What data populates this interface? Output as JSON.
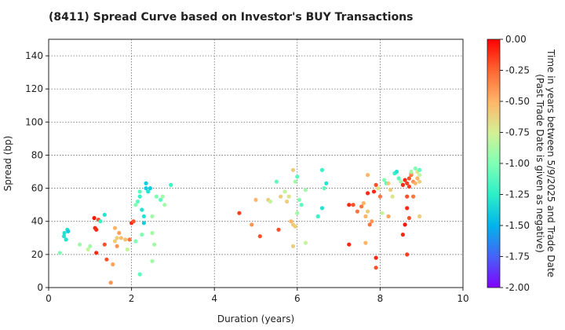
{
  "chart_data": {
    "type": "scatter",
    "title": "(8411)   Spread Curve based on Investor's BUY Transactions",
    "xlabel": "Duration (years)",
    "ylabel": "Spread (bp)",
    "xlim": [
      0,
      10
    ],
    "ylim": [
      0,
      150
    ],
    "xticks": [
      "0",
      "2",
      "4",
      "6",
      "8",
      "10"
    ],
    "yticks": [
      "0",
      "20",
      "40",
      "60",
      "80",
      "100",
      "120",
      "140"
    ],
    "grid": true,
    "colorbar": {
      "label_line1": "Time in years between 5/9/2025 and Trade Date",
      "label_line2": "(Past Trade Date is given as negative)",
      "range": [
        -2.0,
        0.0
      ],
      "ticks": [
        "0.00",
        "-0.25",
        "-0.50",
        "-0.75",
        "-1.00",
        "-1.25",
        "-1.50",
        "-1.75",
        "-2.00"
      ],
      "colormap": "rainbow"
    },
    "points": [
      [
        0.27,
        21,
        -1.0
      ],
      [
        0.37,
        31,
        -1.3
      ],
      [
        0.38,
        33,
        -1.3
      ],
      [
        0.42,
        29,
        -1.3
      ],
      [
        0.45,
        35,
        -1.3
      ],
      [
        0.47,
        34,
        -1.4
      ],
      [
        0.75,
        26,
        -0.9
      ],
      [
        0.95,
        23,
        -0.8
      ],
      [
        1.0,
        25,
        -0.9
      ],
      [
        1.1,
        42,
        -0.05
      ],
      [
        1.12,
        36,
        -0.1
      ],
      [
        1.15,
        35,
        -0.1
      ],
      [
        1.15,
        21,
        -0.1
      ],
      [
        1.2,
        41,
        -0.2
      ],
      [
        1.25,
        40,
        -1.2
      ],
      [
        1.35,
        44,
        -1.3
      ],
      [
        1.35,
        26,
        -0.2
      ],
      [
        1.4,
        17,
        -0.2
      ],
      [
        1.5,
        3,
        -0.4
      ],
      [
        1.55,
        14,
        -0.45
      ],
      [
        1.6,
        36,
        -0.5
      ],
      [
        1.65,
        30,
        -0.6
      ],
      [
        1.6,
        28,
        -0.6
      ],
      [
        1.7,
        33,
        -0.45
      ],
      [
        1.65,
        25,
        -0.4
      ],
      [
        1.75,
        30,
        -0.55
      ],
      [
        1.85,
        29,
        -0.55
      ],
      [
        1.9,
        23,
        -0.8
      ],
      [
        1.95,
        29,
        -0.3
      ],
      [
        2.0,
        39,
        -0.1
      ],
      [
        2.05,
        40,
        -0.2
      ],
      [
        2.1,
        50,
        -1.0
      ],
      [
        2.1,
        28,
        -1.0
      ],
      [
        2.15,
        52,
        -1.1
      ],
      [
        2.2,
        58,
        -1.1
      ],
      [
        2.2,
        55,
        -1.2
      ],
      [
        2.25,
        47,
        -1.3
      ],
      [
        2.3,
        39,
        -1.4
      ],
      [
        2.3,
        43,
        -1.3
      ],
      [
        2.35,
        63,
        -1.4
      ],
      [
        2.35,
        60,
        -1.4
      ],
      [
        2.4,
        58,
        -1.3
      ],
      [
        2.45,
        60,
        -1.4
      ],
      [
        2.5,
        33,
        -0.9
      ],
      [
        2.5,
        43,
        -0.9
      ],
      [
        2.55,
        26,
        -0.9
      ],
      [
        2.5,
        16,
        -0.9
      ],
      [
        2.2,
        8,
        -1.1
      ],
      [
        2.25,
        32,
        -1.0
      ],
      [
        2.6,
        55,
        -1.0
      ],
      [
        2.7,
        53,
        -1.1
      ],
      [
        2.75,
        55,
        -0.9
      ],
      [
        2.8,
        50,
        -0.9
      ],
      [
        2.95,
        62,
        -1.2
      ],
      [
        4.6,
        45,
        -0.15
      ],
      [
        4.9,
        38,
        -0.4
      ],
      [
        5.0,
        53,
        -0.5
      ],
      [
        5.1,
        31,
        -0.2
      ],
      [
        5.3,
        53,
        -0.6
      ],
      [
        5.35,
        52,
        -0.8
      ],
      [
        5.5,
        64,
        -1.1
      ],
      [
        5.55,
        35,
        -0.2
      ],
      [
        5.6,
        55,
        -0.6
      ],
      [
        5.7,
        58,
        -0.8
      ],
      [
        5.75,
        52,
        -0.6
      ],
      [
        5.8,
        55,
        -0.7
      ],
      [
        5.85,
        40,
        -0.5
      ],
      [
        5.9,
        71,
        -0.6
      ],
      [
        5.9,
        38,
        -0.6
      ],
      [
        5.9,
        25,
        -0.6
      ],
      [
        5.95,
        37,
        -0.6
      ],
      [
        5.95,
        64,
        -0.9
      ],
      [
        6.0,
        67,
        -1.1
      ],
      [
        6.0,
        45,
        -0.9
      ],
      [
        6.05,
        53,
        -1.0
      ],
      [
        6.1,
        50,
        -1.1
      ],
      [
        6.2,
        59,
        -0.9
      ],
      [
        6.2,
        27,
        -0.8
      ],
      [
        6.5,
        43,
        -1.2
      ],
      [
        6.6,
        48,
        -1.3
      ],
      [
        6.6,
        71,
        -1.2
      ],
      [
        6.65,
        60,
        -1.1
      ],
      [
        6.7,
        63,
        -1.3
      ],
      [
        7.25,
        50,
        -0.1
      ],
      [
        7.25,
        26,
        -0.1
      ],
      [
        7.35,
        50,
        -0.2
      ],
      [
        7.45,
        46,
        -0.3
      ],
      [
        7.55,
        49,
        -0.3
      ],
      [
        7.6,
        51,
        -0.5
      ],
      [
        7.65,
        27,
        -0.5
      ],
      [
        7.65,
        43,
        -0.5
      ],
      [
        7.7,
        46,
        -0.6
      ],
      [
        7.7,
        68,
        -0.5
      ],
      [
        7.7,
        57,
        -0.1
      ],
      [
        7.75,
        38,
        -0.3
      ],
      [
        7.8,
        40,
        -0.4
      ],
      [
        7.85,
        58,
        -0.1
      ],
      [
        7.9,
        62,
        -0.2
      ],
      [
        7.9,
        18,
        -0.1
      ],
      [
        7.9,
        12,
        -0.2
      ],
      [
        7.95,
        60,
        -0.7
      ],
      [
        8.0,
        55,
        -0.3
      ],
      [
        8.05,
        45,
        -0.8
      ],
      [
        8.1,
        65,
        -1.0
      ],
      [
        8.15,
        63,
        -1.1
      ],
      [
        8.2,
        63,
        -0.6
      ],
      [
        8.2,
        43,
        -0.45
      ],
      [
        8.25,
        59,
        -0.6
      ],
      [
        8.3,
        55,
        -0.7
      ],
      [
        8.35,
        69,
        -1.2
      ],
      [
        8.4,
        70,
        -1.3
      ],
      [
        8.45,
        66,
        -1.1
      ],
      [
        8.5,
        64,
        -0.9
      ],
      [
        8.55,
        62,
        -0.1
      ],
      [
        8.55,
        32,
        -0.1
      ],
      [
        8.6,
        38,
        -0.05
      ],
      [
        8.6,
        65,
        -0.1
      ],
      [
        8.65,
        63,
        -0.15
      ],
      [
        8.65,
        55,
        -0.2
      ],
      [
        8.65,
        48,
        -0.1
      ],
      [
        8.65,
        20,
        -0.15
      ],
      [
        8.7,
        66,
        -0.2
      ],
      [
        8.7,
        61,
        -0.15
      ],
      [
        8.7,
        42,
        -0.2
      ],
      [
        8.75,
        68,
        -0.3
      ],
      [
        8.75,
        69,
        -0.4
      ],
      [
        8.75,
        70,
        -0.9
      ],
      [
        8.8,
        64,
        -0.4
      ],
      [
        8.8,
        55,
        -0.3
      ],
      [
        8.85,
        72,
        -1.0
      ],
      [
        8.85,
        63,
        -0.5
      ],
      [
        8.9,
        70,
        -0.7
      ],
      [
        8.9,
        66,
        -0.5
      ],
      [
        8.95,
        71,
        -1.1
      ],
      [
        8.95,
        68,
        -0.8
      ],
      [
        8.95,
        64,
        -0.6
      ],
      [
        8.95,
        43,
        -0.6
      ]
    ]
  }
}
